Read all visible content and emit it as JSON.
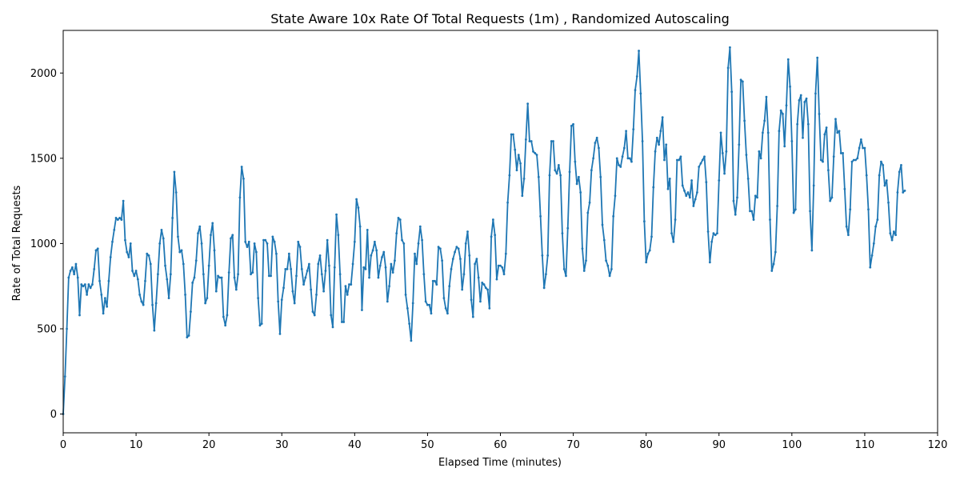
{
  "chart_data": {
    "type": "line",
    "title": "State Aware 10x Rate Of Total Requests (1m) , Randomized Autoscaling",
    "xlabel": "Elapsed Time (minutes)",
    "ylabel": "Rate of Total Requests",
    "xlim": [
      0,
      120
    ],
    "ylim": [
      -110,
      2250
    ],
    "xticks": [
      0,
      10,
      20,
      30,
      40,
      50,
      60,
      70,
      80,
      90,
      100,
      110,
      120
    ],
    "yticks": [
      0,
      500,
      1000,
      1500,
      2000
    ],
    "grid": false,
    "legend": "none",
    "colors": {
      "line": "#1f77b4",
      "axes": "#000000"
    },
    "series": [
      {
        "x_start": 0,
        "x_step": 0.25,
        "values": [
          0,
          220,
          500,
          800,
          840,
          860,
          820,
          880,
          800,
          580,
          760,
          750,
          760,
          700,
          760,
          740,
          760,
          850,
          960,
          970,
          780,
          700,
          590,
          680,
          630,
          780,
          920,
          1010,
          1080,
          1150,
          1140,
          1150,
          1140,
          1250,
          1020,
          950,
          920,
          1000,
          840,
          810,
          840,
          790,
          700,
          660,
          640,
          780,
          940,
          930,
          880,
          640,
          490,
          650,
          820,
          1000,
          1080,
          1030,
          870,
          790,
          680,
          820,
          1150,
          1420,
          1300,
          1040,
          950,
          960,
          880,
          700,
          450,
          460,
          600,
          770,
          800,
          900,
          1060,
          1100,
          1000,
          820,
          650,
          680,
          870,
          1050,
          1120,
          960,
          720,
          810,
          800,
          800,
          570,
          520,
          580,
          830,
          1030,
          1050,
          800,
          730,
          820,
          1270,
          1450,
          1380,
          1010,
          980,
          1010,
          820,
          830,
          1000,
          950,
          680,
          520,
          530,
          1020,
          1020,
          1000,
          810,
          810,
          1040,
          1010,
          940,
          660,
          470,
          670,
          740,
          850,
          850,
          940,
          850,
          720,
          650,
          810,
          1010,
          980,
          850,
          760,
          800,
          840,
          880,
          730,
          600,
          580,
          700,
          880,
          930,
          820,
          720,
          840,
          1020,
          870,
          580,
          510,
          860,
          1170,
          1050,
          820,
          540,
          540,
          750,
          700,
          760,
          760,
          880,
          1010,
          1260,
          1210,
          1100,
          610,
          860,
          850,
          1080,
          800,
          930,
          960,
          1010,
          960,
          800,
          870,
          920,
          950,
          860,
          660,
          750,
          880,
          830,
          900,
          1060,
          1150,
          1140,
          1020,
          1000,
          700,
          620,
          530,
          430,
          650,
          940,
          880,
          1000,
          1100,
          1020,
          820,
          660,
          640,
          640,
          590,
          780,
          780,
          760,
          980,
          970,
          900,
          680,
          620,
          590,
          750,
          850,
          910,
          950,
          980,
          970,
          910,
          730,
          820,
          1000,
          1070,
          930,
          670,
          570,
          880,
          910,
          800,
          660,
          770,
          760,
          740,
          730,
          620,
          1040,
          1140,
          1050,
          790,
          870,
          870,
          860,
          820,
          940,
          1240,
          1400,
          1640,
          1640,
          1550,
          1430,
          1520,
          1470,
          1280,
          1380,
          1610,
          1820,
          1600,
          1600,
          1540,
          1530,
          1520,
          1390,
          1160,
          930,
          740,
          820,
          930,
          1400,
          1600,
          1600,
          1430,
          1410,
          1460,
          1400,
          1060,
          850,
          810,
          1090,
          1420,
          1690,
          1700,
          1480,
          1350,
          1390,
          1300,
          970,
          840,
          900,
          1180,
          1240,
          1430,
          1500,
          1590,
          1620,
          1560,
          1390,
          1110,
          1020,
          900,
          870,
          810,
          850,
          1160,
          1280,
          1500,
          1460,
          1450,
          1510,
          1560,
          1660,
          1500,
          1500,
          1480,
          1670,
          1900,
          1980,
          2130,
          1880,
          1600,
          1130,
          890,
          940,
          960,
          1040,
          1330,
          1540,
          1620,
          1580,
          1660,
          1740,
          1490,
          1580,
          1320,
          1380,
          1060,
          1010,
          1140,
          1490,
          1490,
          1510,
          1340,
          1310,
          1280,
          1300,
          1270,
          1370,
          1220,
          1260,
          1300,
          1450,
          1470,
          1490,
          1510,
          1360,
          1070,
          890,
          1010,
          1060,
          1050,
          1060,
          1370,
          1650,
          1530,
          1410,
          1540,
          2030,
          2150,
          1890,
          1250,
          1170,
          1270,
          1580,
          1960,
          1950,
          1720,
          1520,
          1380,
          1190,
          1190,
          1140,
          1280,
          1270,
          1540,
          1500,
          1650,
          1720,
          1860,
          1650,
          1140,
          840,
          880,
          950,
          1220,
          1660,
          1780,
          1760,
          1570,
          1810,
          2080,
          1920,
          1600,
          1180,
          1200,
          1700,
          1840,
          1870,
          1620,
          1830,
          1850,
          1700,
          1190,
          960,
          1340,
          1880,
          2090,
          1760,
          1490,
          1480,
          1640,
          1680,
          1430,
          1250,
          1270,
          1510,
          1730,
          1650,
          1660,
          1530,
          1530,
          1320,
          1100,
          1050,
          1200,
          1480,
          1490,
          1490,
          1500,
          1560,
          1610,
          1560,
          1560,
          1400,
          1200,
          860,
          930,
          1000,
          1100,
          1140,
          1400,
          1480,
          1460,
          1340,
          1370,
          1240,
          1060,
          1020,
          1070,
          1050,
          1300,
          1420,
          1460,
          1300,
          1310
        ]
      }
    ]
  }
}
